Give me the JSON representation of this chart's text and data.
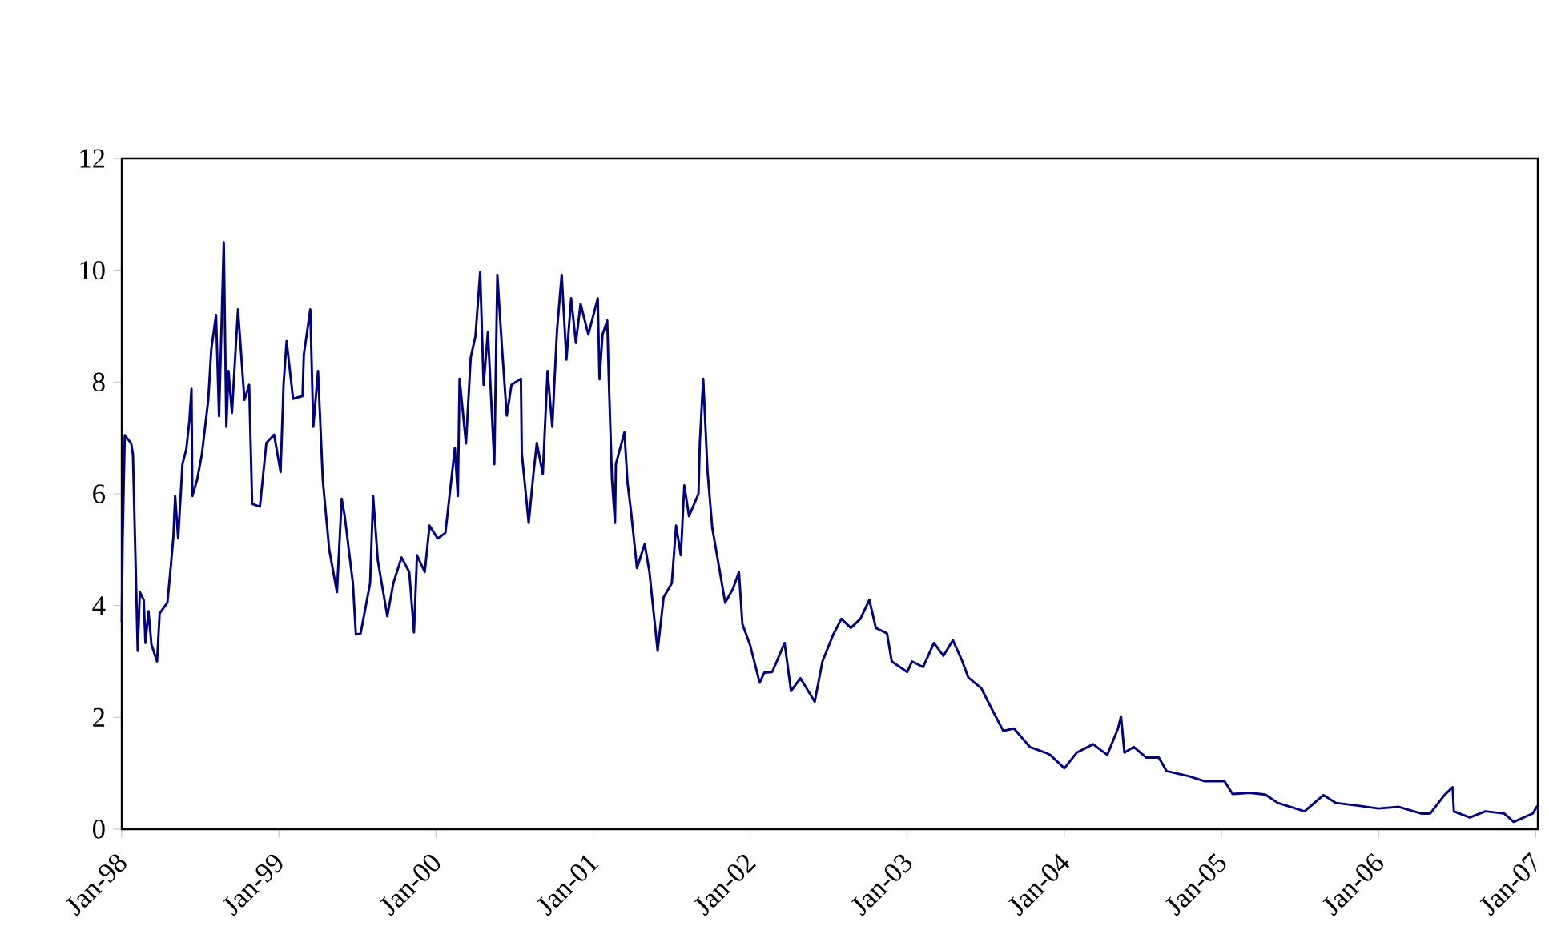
{
  "chart_data": {
    "type": "line",
    "xlim": [
      "1998-01-01",
      "2007-01-06"
    ],
    "ylim": [
      0,
      12
    ],
    "yticks": [
      0,
      2,
      4,
      6,
      8,
      10,
      12
    ],
    "xticks": [
      {
        "value": "1998-01-01",
        "label": "Jan-98"
      },
      {
        "value": "1999-01-01",
        "label": "Jan-99"
      },
      {
        "value": "2000-01-01",
        "label": "Jan-00"
      },
      {
        "value": "2001-01-01",
        "label": "Jan-01"
      },
      {
        "value": "2002-01-01",
        "label": "Jan-02"
      },
      {
        "value": "2003-01-01",
        "label": "Jan-03"
      },
      {
        "value": "2004-01-01",
        "label": "Jan-04"
      },
      {
        "value": "2005-01-01",
        "label": "Jan-05"
      },
      {
        "value": "2006-01-01",
        "label": "Jan-06"
      },
      {
        "value": "2007-01-01",
        "label": "Jan-07"
      }
    ],
    "series": [
      {
        "color": "#000080",
        "x": [
          "1998-01-01",
          "1998-01-03",
          "1998-01-08",
          "1998-01-23",
          "1998-01-27",
          "1998-02-07",
          "1998-02-12",
          "1998-02-21",
          "1998-02-25",
          "1998-03-04",
          "1998-03-11",
          "1998-03-24",
          "1998-03-30",
          "1998-04-17",
          "1998-04-24",
          "1998-05-01",
          "1998-05-05",
          "1998-05-12",
          "1998-05-22",
          "1998-05-31",
          "1998-06-07",
          "1998-06-12",
          "1998-06-14",
          "1998-06-25",
          "1998-07-06",
          "1998-07-21",
          "1998-07-28",
          "1998-08-08",
          "1998-08-15",
          "1998-08-26",
          "1998-09-01",
          "1998-09-06",
          "1998-09-14",
          "1998-09-28",
          "1998-10-13",
          "1998-10-24",
          "1998-10-31",
          "1998-11-18",
          "1998-12-03",
          "1998-12-21",
          "1999-01-05",
          "1999-01-12",
          "1999-01-19",
          "1999-02-03",
          "1999-02-25",
          "1999-02-28",
          "1999-03-15",
          "1999-03-22",
          "1999-04-02",
          "1999-04-13",
          "1999-04-28",
          "1999-05-16",
          "1999-05-27",
          "1999-06-03",
          "1999-06-22",
          "1999-06-29",
          "1999-07-10",
          "1999-08-01",
          "1999-08-08",
          "1999-08-19",
          "1999-09-10",
          "1999-09-24",
          "1999-10-13",
          "1999-10-31",
          "1999-11-11",
          "1999-11-18",
          "1999-12-06",
          "1999-12-17",
          "2000-01-05",
          "2000-01-23",
          "2000-02-14",
          "2000-02-21",
          "2000-02-25",
          "2000-03-11",
          "2000-03-22",
          "2000-04-02",
          "2000-04-13",
          "2000-04-21",
          "2000-05-01",
          "2000-05-16",
          "2000-05-23",
          "2000-06-03",
          "2000-06-14",
          "2000-06-25",
          "2000-07-17",
          "2000-07-19",
          "2000-08-04",
          "2000-08-15",
          "2000-08-23",
          "2000-09-06",
          "2000-09-17",
          "2000-09-28",
          "2000-10-09",
          "2000-10-20",
          "2000-10-31",
          "2000-11-11",
          "2000-11-22",
          "2000-12-03",
          "2000-12-21",
          "2001-01-12",
          "2001-01-16",
          "2001-01-23",
          "2001-02-03",
          "2001-02-07",
          "2001-02-14",
          "2001-02-21",
          "2001-02-23",
          "2001-03-15",
          "2001-03-22",
          "2001-03-30",
          "2001-04-13",
          "2001-05-01",
          "2001-05-12",
          "2001-05-31",
          "2001-06-14",
          "2001-07-03",
          "2001-07-13",
          "2001-07-24",
          "2001-08-01",
          "2001-08-12",
          "2001-09-03",
          "2001-09-06",
          "2001-09-14",
          "2001-09-24",
          "2001-10-05",
          "2001-10-16",
          "2001-11-04",
          "2001-11-22",
          "2001-12-06",
          "2001-12-14",
          "2002-01-01",
          "2002-01-23",
          "2002-02-03",
          "2002-02-21",
          "2002-03-04",
          "2002-03-22",
          "2002-04-06",
          "2002-04-28",
          "2002-05-31",
          "2002-06-18",
          "2002-07-13",
          "2002-08-01",
          "2002-08-23",
          "2002-09-14",
          "2002-10-05",
          "2002-10-20",
          "2002-11-15",
          "2002-11-26",
          "2003-01-01",
          "2003-01-12",
          "2003-02-07",
          "2003-03-04",
          "2003-03-26",
          "2003-04-17",
          "2003-05-09",
          "2003-05-23",
          "2003-06-22",
          "2003-07-17",
          "2003-08-12",
          "2003-09-06",
          "2003-10-13",
          "2003-11-18",
          "2003-11-29",
          "2004-01-01",
          "2004-01-30",
          "2004-03-08",
          "2004-04-10",
          "2004-05-05",
          "2004-05-12",
          "2004-05-20",
          "2004-06-11",
          "2004-07-10",
          "2004-08-08",
          "2004-08-26",
          "2004-10-16",
          "2004-11-22",
          "2005-01-08",
          "2005-01-27",
          "2005-03-08",
          "2005-04-13",
          "2005-05-12",
          "2005-07-13",
          "2005-08-26",
          "2005-09-24",
          "2005-11-15",
          "2006-01-01",
          "2006-02-17",
          "2006-04-10",
          "2006-05-01",
          "2006-06-03",
          "2006-06-22",
          "2006-06-25",
          "2006-08-01",
          "2006-09-06",
          "2006-10-20",
          "2006-11-11",
          "2006-12-25",
          "2007-01-05"
        ],
        "values": [
          3.7,
          5.2,
          7.05,
          6.9,
          6.7,
          3.19,
          4.24,
          4.1,
          3.33,
          3.9,
          3.3,
          3.0,
          3.86,
          4.05,
          4.62,
          5.24,
          5.96,
          5.2,
          6.53,
          6.8,
          7.3,
          7.88,
          5.96,
          6.25,
          6.7,
          7.68,
          8.59,
          9.2,
          7.39,
          10.5,
          7.2,
          8.2,
          7.45,
          9.3,
          7.68,
          7.95,
          5.82,
          5.77,
          6.91,
          7.06,
          6.39,
          7.97,
          8.73,
          7.7,
          7.75,
          8.49,
          9.3,
          7.2,
          8.2,
          6.25,
          5.0,
          4.24,
          5.91,
          5.6,
          4.4,
          3.48,
          3.5,
          4.4,
          5.96,
          4.8,
          3.81,
          4.4,
          4.86,
          4.6,
          3.52,
          4.9,
          4.6,
          5.43,
          5.2,
          5.3,
          6.82,
          5.96,
          8.06,
          6.9,
          8.44,
          8.82,
          9.97,
          7.95,
          8.9,
          6.53,
          9.92,
          8.6,
          7.4,
          7.95,
          8.06,
          6.73,
          5.48,
          6.35,
          6.91,
          6.35,
          8.2,
          7.2,
          8.92,
          9.92,
          8.4,
          9.5,
          8.7,
          9.4,
          8.85,
          9.5,
          8.05,
          8.85,
          9.1,
          7.95,
          6.25,
          5.48,
          6.53,
          7.1,
          6.2,
          5.7,
          4.67,
          5.1,
          4.6,
          3.19,
          4.15,
          4.4,
          5.43,
          4.9,
          6.15,
          5.6,
          6.0,
          6.9,
          8.06,
          6.4,
          5.39,
          4.9,
          4.05,
          4.3,
          4.6,
          3.67,
          3.29,
          2.62,
          2.8,
          2.81,
          3.0,
          3.33,
          2.47,
          2.7,
          2.28,
          3.0,
          3.48,
          3.76,
          3.6,
          3.76,
          4.1,
          3.6,
          3.5,
          3.0,
          2.81,
          3.0,
          2.9,
          3.33,
          3.1,
          3.38,
          3.0,
          2.71,
          2.52,
          2.14,
          1.76,
          1.8,
          1.47,
          1.37,
          1.33,
          1.09,
          1.37,
          1.52,
          1.33,
          1.8,
          2.02,
          1.37,
          1.47,
          1.28,
          1.28,
          1.04,
          0.95,
          0.86,
          0.86,
          0.63,
          0.65,
          0.62,
          0.47,
          0.32,
          0.61,
          0.47,
          0.42,
          0.37,
          0.4,
          0.28,
          0.28,
          0.61,
          0.75,
          0.32,
          0.21,
          0.32,
          0.28,
          0.13,
          0.28,
          0.42
        ]
      }
    ]
  }
}
